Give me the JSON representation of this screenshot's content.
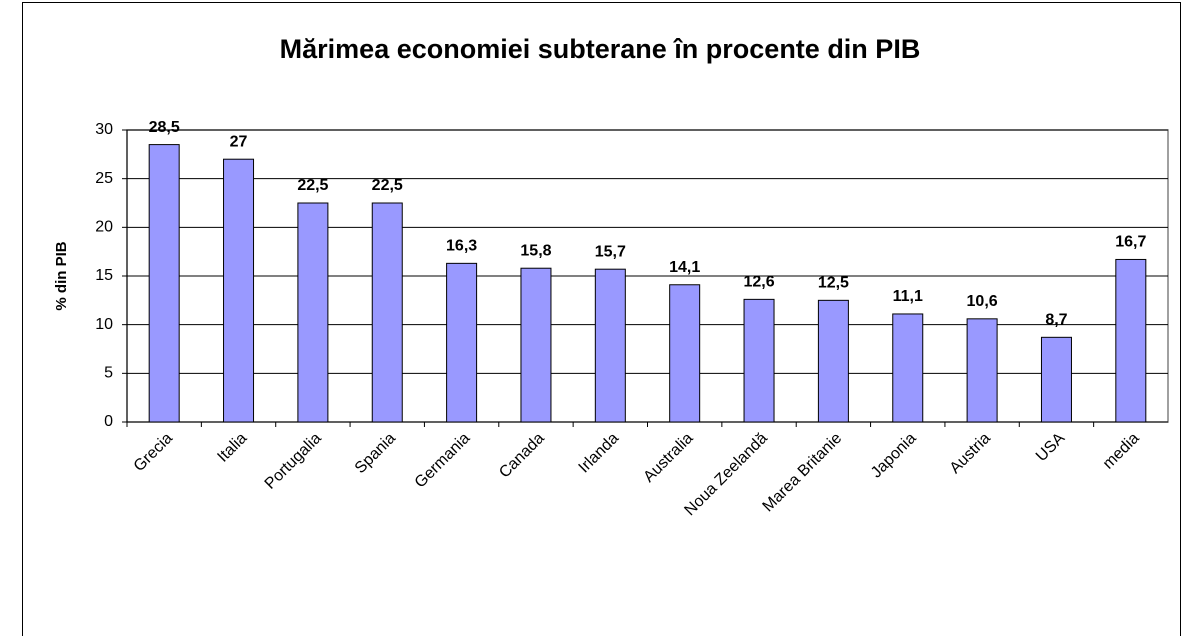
{
  "chart_data": {
    "type": "bar",
    "title": "Mărimea economiei subterane în procente din PIB",
    "y_label": "% din PIB",
    "categories": [
      "Grecia",
      "Italia",
      "Portugalia",
      "Spania",
      "Germania",
      "Canada",
      "Irlanda",
      "Australia",
      "Noua Zeelandă",
      "Marea Britanie",
      "Japonia",
      "Austria",
      "USA",
      "media"
    ],
    "values": [
      28.5,
      27,
      22.5,
      22.5,
      16.3,
      15.8,
      15.7,
      14.1,
      12.6,
      12.5,
      11.1,
      10.6,
      8.7,
      16.7
    ],
    "value_labels": [
      "28,5",
      "27",
      "22,5",
      "22,5",
      "16,3",
      "15,8",
      "15,7",
      "14,1",
      "12,6",
      "12,5",
      "11,1",
      "10,6",
      "8,7",
      "16,7"
    ],
    "color": "#9999ff",
    "ylim": [
      0,
      30
    ],
    "yticks": [
      0,
      5,
      10,
      15,
      20,
      25,
      30
    ],
    "grid": true
  }
}
